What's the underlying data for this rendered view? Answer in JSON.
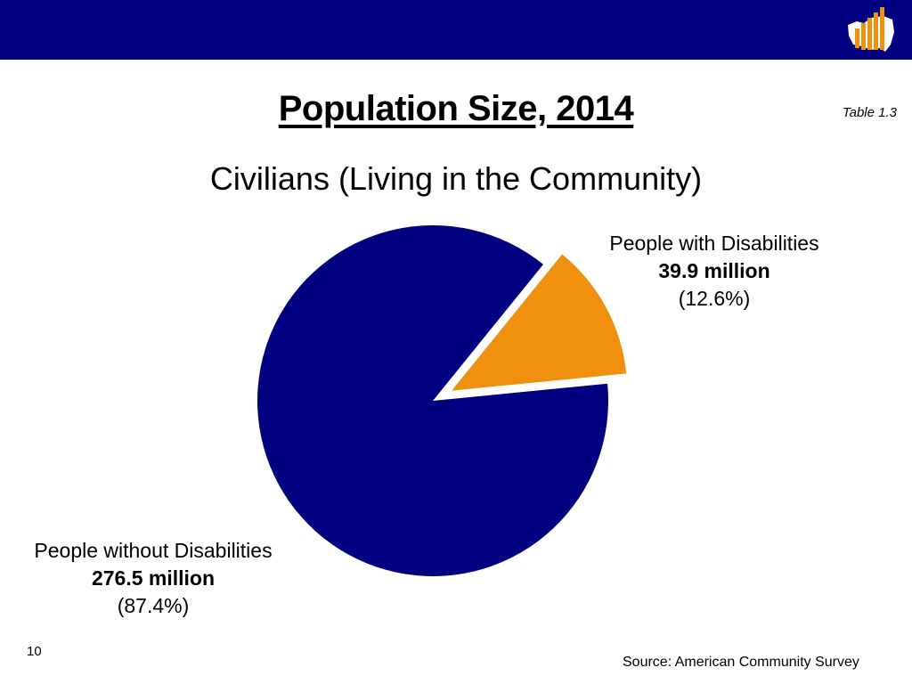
{
  "slide": {
    "title": "Population Size, 2014",
    "subtitle": "Civilians (Living in the Community)",
    "table_ref": "Table 1.3",
    "page_number": "10",
    "source": "Source: American Community Survey"
  },
  "colors": {
    "header_bar": "#000080",
    "with_disabilities": "#F0900F",
    "without_disabilities": "#000080"
  },
  "chart_data": {
    "type": "pie",
    "title": "Civilians (Living in the Community)",
    "slices": [
      {
        "name": "People with Disabilities",
        "value": 39.9,
        "value_label": "39.9 million",
        "percent": 12.6,
        "percent_label": "(12.6%)",
        "exploded": true
      },
      {
        "name": "People without Disabilities",
        "value": 276.5,
        "value_label": "276.5 million",
        "percent": 87.4,
        "percent_label": "(87.4%)",
        "exploded": false
      }
    ]
  }
}
